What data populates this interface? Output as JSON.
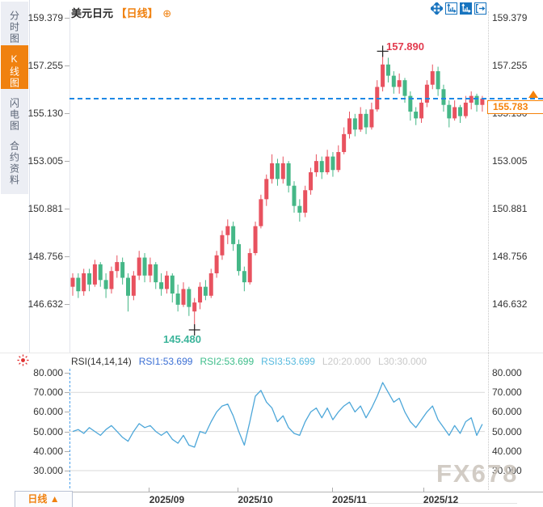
{
  "sidebar": {
    "items": [
      {
        "label": "分时图",
        "active": false
      },
      {
        "label": "K线图",
        "active": true
      },
      {
        "label": "闪电图",
        "active": false
      },
      {
        "label": "合约资料",
        "active": false
      }
    ]
  },
  "header": {
    "symbol": "美元日元",
    "period_tag": "【日线】",
    "add_icon": "⊕",
    "toolbar_icons": [
      "pan-crosshair-icon",
      "axis-scale-icon",
      "axis-scale-active-icon",
      "exit-fullscreen-icon"
    ]
  },
  "colors": {
    "accent_orange": "#f0810f",
    "candle_up": "#e8525f",
    "candle_down": "#45b787",
    "dashed_line_blue": "#1e88e5",
    "rsi_line": "#4da7d9",
    "high_annotation": "#e23b4e",
    "low_annotation": "#3bb49a",
    "toolbar_icon_blue": "#1874bf",
    "grid_grey": "#d9d9d9"
  },
  "main_chart": {
    "high_label": "157.890",
    "low_label": "145.480",
    "price_box": {
      "value": "155.783"
    },
    "y_tick_labels": [
      "159.379",
      "157.255",
      "155.130",
      "153.005",
      "150.881",
      "148.756",
      "146.632"
    ]
  },
  "rsi_panel": {
    "header_segments": [
      {
        "text": "RSI(14,14,14)",
        "color": "#333333"
      },
      {
        "text": "RSI1:53.699",
        "color": "#3b6fd4"
      },
      {
        "text": "RSI2:53.699",
        "color": "#3dbd8a"
      },
      {
        "text": "RSI3:53.699",
        "color": "#55b9de"
      },
      {
        "text": "L20:20.000",
        "color": "#c9c9c9"
      },
      {
        "text": "L30:30.000",
        "color": "#c9c9c9"
      }
    ],
    "y_tick_labels": [
      "80.000",
      "70.000",
      "60.000",
      "50.000",
      "40.000",
      "30.000"
    ]
  },
  "x_axis": {
    "labels": [
      "2025/09",
      "2025/10",
      "2025/11",
      "2025/12"
    ]
  },
  "bottom_bar": {
    "tab_label": "日线 ▲"
  },
  "watermark": "FX678",
  "chart_data": [
    {
      "type": "candlestick",
      "title": "美元日元 日线",
      "y_ticks": [
        159.379,
        157.255,
        155.13,
        153.005,
        150.881,
        148.756,
        146.632
      ],
      "x_ticks": [
        "2025/09",
        "2025/10",
        "2025/11",
        "2025/12"
      ],
      "x_tick_indices": [
        17,
        33,
        50,
        66.5
      ],
      "ylim": [
        145.0,
        159.9
      ],
      "annotations": {
        "high": {
          "index": 56,
          "price": 157.89
        },
        "low": {
          "index": 22,
          "price": 145.48
        },
        "last_price": 155.783
      },
      "ohlc": [
        [
          147.4,
          148.0,
          147.0,
          147.8
        ],
        [
          147.8,
          148.0,
          146.9,
          147.2
        ],
        [
          147.2,
          148.2,
          147.0,
          148.0
        ],
        [
          148.0,
          148.2,
          147.2,
          147.5
        ],
        [
          147.5,
          148.6,
          147.4,
          148.4
        ],
        [
          148.4,
          148.5,
          147.4,
          147.7
        ],
        [
          147.7,
          148.0,
          146.9,
          147.3
        ],
        [
          147.3,
          148.3,
          147.1,
          148.1
        ],
        [
          148.1,
          148.8,
          147.8,
          148.5
        ],
        [
          148.5,
          148.7,
          147.5,
          147.8
        ],
        [
          147.8,
          148.0,
          146.3,
          147.0
        ],
        [
          147.0,
          148.1,
          146.8,
          147.9
        ],
        [
          147.9,
          149.0,
          147.7,
          148.7
        ],
        [
          148.7,
          148.9,
          147.6,
          147.9
        ],
        [
          147.9,
          148.7,
          147.6,
          148.4
        ],
        [
          148.4,
          148.5,
          147.3,
          147.6
        ],
        [
          147.6,
          148.0,
          147.0,
          147.3
        ],
        [
          147.3,
          148.1,
          147.1,
          147.9
        ],
        [
          147.9,
          148.0,
          146.7,
          147.1
        ],
        [
          147.1,
          147.5,
          146.3,
          146.6
        ],
        [
          146.6,
          147.6,
          146.5,
          147.3
        ],
        [
          147.3,
          147.4,
          146.1,
          146.5
        ],
        [
          146.3,
          146.9,
          145.48,
          146.7
        ],
        [
          146.7,
          147.6,
          146.4,
          147.4
        ],
        [
          147.4,
          147.7,
          146.8,
          147.0
        ],
        [
          147.0,
          148.2,
          146.9,
          148.0
        ],
        [
          148.0,
          149.0,
          147.8,
          148.8
        ],
        [
          148.8,
          149.9,
          148.6,
          149.7
        ],
        [
          149.7,
          150.4,
          149.3,
          150.1
        ],
        [
          150.1,
          150.3,
          149.0,
          149.3
        ],
        [
          149.3,
          149.5,
          147.9,
          148.1
        ],
        [
          148.1,
          148.3,
          147.2,
          147.6
        ],
        [
          147.6,
          149.1,
          147.5,
          148.9
        ],
        [
          148.9,
          150.3,
          148.8,
          150.1
        ],
        [
          150.1,
          151.5,
          150.0,
          151.3
        ],
        [
          151.3,
          152.4,
          151.0,
          152.2
        ],
        [
          152.2,
          153.3,
          152.0,
          152.9
        ],
        [
          152.9,
          153.1,
          151.9,
          152.2
        ],
        [
          152.2,
          153.2,
          152.0,
          152.9
        ],
        [
          152.9,
          153.0,
          151.6,
          151.9
        ],
        [
          151.9,
          152.1,
          150.7,
          151.0
        ],
        [
          151.0,
          151.3,
          150.3,
          150.7
        ],
        [
          150.7,
          151.9,
          150.5,
          151.7
        ],
        [
          151.7,
          152.7,
          151.5,
          152.5
        ],
        [
          152.5,
          153.3,
          152.3,
          153.0
        ],
        [
          153.0,
          153.2,
          152.2,
          152.5
        ],
        [
          152.5,
          153.5,
          152.4,
          153.2
        ],
        [
          153.2,
          153.4,
          152.3,
          152.6
        ],
        [
          152.6,
          153.7,
          152.5,
          153.4
        ],
        [
          153.4,
          154.5,
          153.3,
          154.2
        ],
        [
          154.2,
          155.2,
          154.0,
          154.9
        ],
        [
          154.9,
          155.1,
          154.1,
          154.4
        ],
        [
          154.4,
          155.4,
          154.3,
          155.1
        ],
        [
          155.1,
          155.3,
          154.2,
          154.5
        ],
        [
          154.5,
          155.6,
          154.4,
          155.3
        ],
        [
          155.3,
          156.6,
          155.2,
          156.3
        ],
        [
          156.3,
          157.89,
          156.1,
          157.3
        ],
        [
          157.3,
          157.6,
          156.5,
          156.8
        ],
        [
          156.8,
          157.0,
          156.0,
          156.3
        ],
        [
          156.3,
          156.9,
          156.0,
          156.6
        ],
        [
          156.6,
          156.7,
          155.6,
          155.9
        ],
        [
          155.9,
          156.1,
          154.8,
          155.2
        ],
        [
          155.2,
          155.4,
          154.6,
          154.9
        ],
        [
          154.9,
          155.8,
          154.7,
          155.6
        ],
        [
          155.6,
          156.6,
          155.4,
          156.4
        ],
        [
          156.4,
          157.3,
          156.2,
          157.0
        ],
        [
          157.0,
          157.2,
          155.9,
          156.2
        ],
        [
          156.2,
          156.4,
          155.2,
          155.5
        ],
        [
          155.5,
          155.7,
          154.5,
          154.9
        ],
        [
          154.9,
          155.7,
          154.8,
          155.4
        ],
        [
          155.4,
          155.5,
          154.7,
          155.0
        ],
        [
          155.0,
          155.9,
          154.9,
          155.6
        ],
        [
          155.6,
          156.1,
          155.3,
          155.9
        ],
        [
          155.9,
          156.0,
          155.2,
          155.5
        ],
        [
          155.5,
          155.9,
          155.2,
          155.783
        ]
      ]
    },
    {
      "type": "line",
      "title": "RSI(14,14,14)",
      "legend": [
        "RSI1",
        "RSI2",
        "RSI3"
      ],
      "current_values": {
        "RSI1": 53.699,
        "RSI2": 53.699,
        "RSI3": 53.699,
        "L20": 20.0,
        "L30": 30.0
      },
      "y_ticks": [
        80,
        70,
        60,
        50,
        40,
        30
      ],
      "gridlines": [
        70,
        50,
        30
      ],
      "ylim": [
        25,
        85
      ],
      "values": [
        50,
        51,
        49,
        52,
        50,
        48,
        51,
        53,
        50,
        47,
        45,
        50,
        54,
        52,
        53,
        50,
        48,
        50,
        46,
        44,
        48,
        43,
        42,
        50,
        49,
        55,
        60,
        63,
        64,
        58,
        50,
        43,
        55,
        68,
        71,
        65,
        62,
        55,
        58,
        52,
        49,
        48,
        55,
        60,
        62,
        57,
        62,
        56,
        60,
        63,
        65,
        60,
        63,
        57,
        62,
        68,
        75,
        70,
        65,
        67,
        60,
        55,
        52,
        56,
        60,
        63,
        56,
        52,
        48,
        53,
        49,
        55,
        57,
        48,
        53.7
      ]
    }
  ]
}
